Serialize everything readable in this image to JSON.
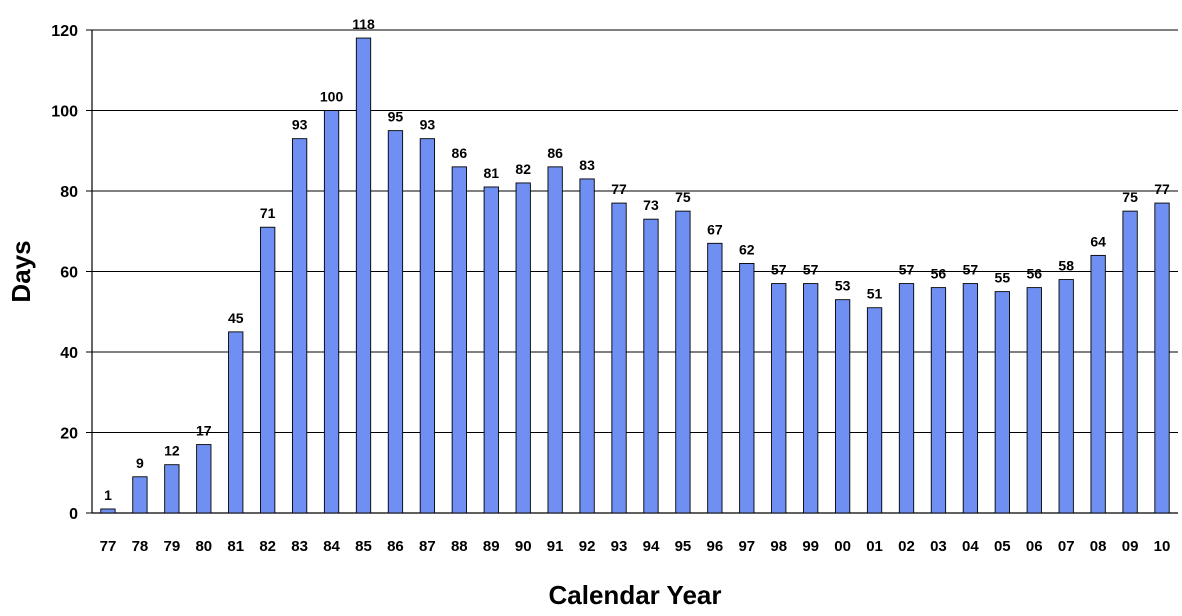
{
  "chart_data": {
    "type": "bar",
    "title": "",
    "xlabel": "Calendar Year",
    "ylabel": "Days",
    "ylim": [
      0,
      120
    ],
    "yticks": [
      0,
      20,
      40,
      60,
      80,
      100,
      120
    ],
    "grid": true,
    "data_labels": true,
    "bar_color": "#6F8FF2",
    "categories": [
      "77",
      "78",
      "79",
      "80",
      "81",
      "82",
      "83",
      "84",
      "85",
      "86",
      "87",
      "88",
      "89",
      "90",
      "91",
      "92",
      "93",
      "94",
      "95",
      "96",
      "97",
      "98",
      "99",
      "00",
      "01",
      "02",
      "03",
      "04",
      "05",
      "06",
      "07",
      "08",
      "09",
      "10"
    ],
    "values": [
      1,
      9,
      12,
      17,
      45,
      71,
      93,
      100,
      118,
      95,
      93,
      86,
      81,
      82,
      86,
      83,
      77,
      73,
      75,
      67,
      62,
      57,
      57,
      53,
      51,
      57,
      56,
      57,
      55,
      56,
      58,
      64,
      75,
      77
    ]
  }
}
